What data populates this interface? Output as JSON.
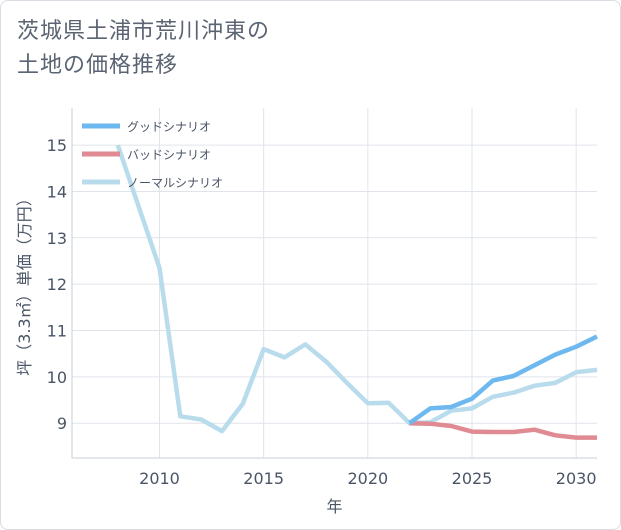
{
  "title": "茨城県土浦市荒川沖東の\n土地の価格推移",
  "chart_data": {
    "type": "line",
    "xlabel": "年",
    "ylabel": "坪（3.3㎡）単価（万円）",
    "xlim": [
      2005.8,
      2031
    ],
    "ylim": [
      8.25,
      15.8
    ],
    "x_ticks": [
      2010,
      2015,
      2020,
      2025,
      2030
    ],
    "y_ticks": [
      9,
      10,
      11,
      12,
      13,
      14,
      15
    ],
    "grid": true,
    "legend_position": "top-left",
    "series": [
      {
        "name": "グッドシナリオ",
        "color": "#6cb8ef",
        "x": [
          2022,
          2023,
          2024,
          2025,
          2026,
          2027,
          2028,
          2029,
          2030,
          2031
        ],
        "y": [
          9.0,
          9.32,
          9.35,
          9.53,
          9.92,
          10.02,
          10.25,
          10.48,
          10.65,
          10.87
        ]
      },
      {
        "name": "バッドシナリオ",
        "color": "#e08a93",
        "x": [
          2022,
          2023,
          2024,
          2025,
          2026,
          2027,
          2028,
          2029,
          2030,
          2031
        ],
        "y": [
          9.0,
          8.99,
          8.94,
          8.82,
          8.81,
          8.81,
          8.86,
          8.74,
          8.69,
          8.69
        ]
      },
      {
        "name": "ノーマルシナリオ",
        "color": "#b9dcec",
        "x": [
          2008,
          2010,
          2011,
          2012,
          2013,
          2014,
          2015,
          2016,
          2017,
          2018,
          2019,
          2020,
          2021,
          2022,
          2023,
          2024,
          2025,
          2026,
          2027,
          2028,
          2029,
          2030,
          2031
        ],
        "y": [
          15.0,
          12.35,
          9.15,
          9.08,
          8.83,
          9.42,
          10.6,
          10.42,
          10.7,
          10.33,
          9.87,
          9.43,
          9.44,
          9.0,
          9.02,
          9.27,
          9.32,
          9.57,
          9.66,
          9.81,
          9.87,
          10.1,
          10.15
        ]
      }
    ]
  }
}
